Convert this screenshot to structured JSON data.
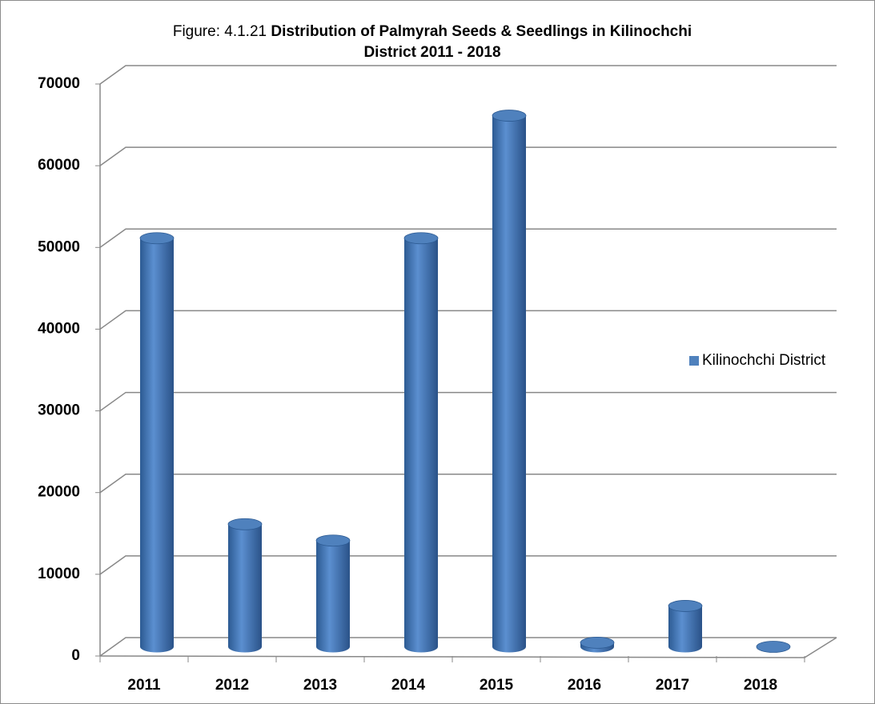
{
  "chart_data": {
    "type": "bar",
    "figure_label": "Figure: 4.1.21",
    "title": [
      "Distribution of Palmyrah Seeds & Seedlings  in  Kilinochchi",
      "District 2011 - 2018"
    ],
    "categories": [
      "2011",
      "2012",
      "2013",
      "2014",
      "2015",
      "2016",
      "2017",
      "2018"
    ],
    "series": [
      {
        "name": "Kilinochchi District",
        "color": "#4f81bd",
        "values": [
          50000,
          15000,
          13000,
          50000,
          65000,
          500,
          5000,
          0
        ]
      }
    ],
    "ylim": [
      0,
      70000
    ],
    "yticks": [
      0,
      10000,
      20000,
      30000,
      40000,
      50000,
      60000,
      70000
    ],
    "grid": true,
    "legend": "right"
  }
}
